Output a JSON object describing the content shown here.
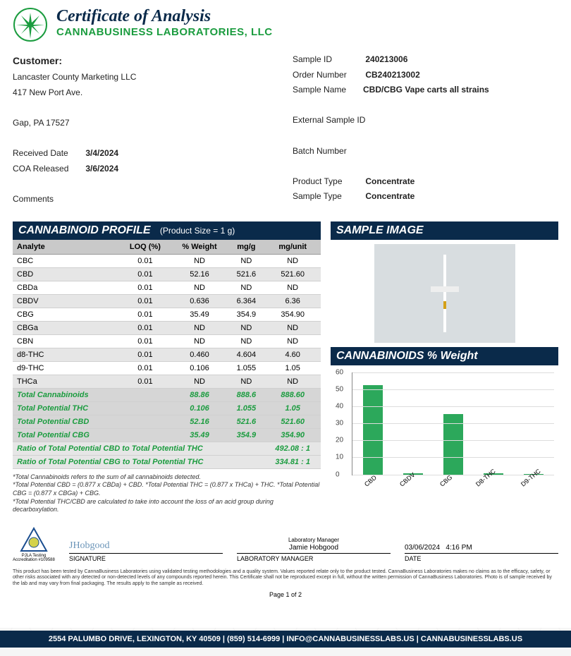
{
  "header": {
    "title": "Certificate of Analysis",
    "lab": "CANNABUSINESS LABORATORIES, LLC"
  },
  "customer": {
    "label": "Customer:",
    "name": "Lancaster County Marketing LLC",
    "addr1": "417 New Port Ave.",
    "addr2": "Gap, PA  17527",
    "received_label": "Received Date",
    "received": "3/4/2024",
    "released_label": "COA Released",
    "released": "3/6/2024",
    "comments_label": "Comments"
  },
  "sample": {
    "id_label": "Sample ID",
    "id": "240213006",
    "order_label": "Order Number",
    "order": "CB240213002",
    "name_label": "Sample Name",
    "name": "CBD/CBG Vape carts  all strains",
    "ext_label": "External Sample ID",
    "ext": "",
    "batch_label": "Batch Number",
    "batch": "",
    "ptype_label": "Product Type",
    "ptype": "Concentrate",
    "stype_label": "Sample Type",
    "stype": "Concentrate"
  },
  "profile": {
    "title": "CANNABINOID PROFILE",
    "subtitle": "(Product Size = 1 g)",
    "headers": [
      "Analyte",
      "LOQ (%)",
      "% Weight",
      "mg/g",
      "mg/unit"
    ],
    "rows": [
      [
        "CBC",
        "0.01",
        "ND",
        "ND",
        "ND"
      ],
      [
        "CBD",
        "0.01",
        "52.16",
        "521.6",
        "521.60"
      ],
      [
        "CBDa",
        "0.01",
        "ND",
        "ND",
        "ND"
      ],
      [
        "CBDV",
        "0.01",
        "0.636",
        "6.364",
        "6.36"
      ],
      [
        "CBG",
        "0.01",
        "35.49",
        "354.9",
        "354.90"
      ],
      [
        "CBGa",
        "0.01",
        "ND",
        "ND",
        "ND"
      ],
      [
        "CBN",
        "0.01",
        "ND",
        "ND",
        "ND"
      ],
      [
        "d8-THC",
        "0.01",
        "0.460",
        "4.604",
        "4.60"
      ],
      [
        "d9-THC",
        "0.01",
        "0.106",
        "1.055",
        "1.05"
      ],
      [
        "THCa",
        "0.01",
        "ND",
        "ND",
        "ND"
      ]
    ],
    "totals": [
      [
        "Total Cannabinoids",
        "",
        "88.86",
        "888.6",
        "888.60"
      ],
      [
        "Total Potential THC",
        "",
        "0.106",
        "1.055",
        "1.05"
      ],
      [
        "Total Potential CBD",
        "",
        "52.16",
        "521.6",
        "521.60"
      ],
      [
        "Total Potential CBG",
        "",
        "35.49",
        "354.9",
        "354.90"
      ]
    ],
    "ratios": [
      [
        "Ratio of Total Potential CBD to Total Potential THC",
        "492.08  : 1"
      ],
      [
        "Ratio of Total Potential CBG to Total Potential THC",
        "334.81  : 1"
      ]
    ],
    "footnotes": "*Total Cannabinoids refers to the sum of all cannabinoids detected.\n*Total Potential CBD = (0.877 x CBDa) + CBD.  *Total Potential THC = (0.877 x THCa) + THC.  *Total Potential CBG = (0.877 x CBGa) + CBG.\n*Total Potential THC/CBD are calculated to take into account the loss of an acid group during decarboxylation."
  },
  "sample_image_title": "SAMPLE IMAGE",
  "chart": {
    "title": "CANNABINOIDS % Weight",
    "type": "bar",
    "categories": [
      "CBD",
      "CBDV",
      "CBG",
      "D8-THC",
      "D9-THC"
    ],
    "values": [
      52.16,
      0.636,
      35.49,
      0.46,
      0.106
    ],
    "ylim": [
      0,
      60
    ],
    "ytick_step": 10,
    "bar_color": "#2ca85b",
    "grid_color": "#dddddd",
    "axis_color": "#888888",
    "background_color": "#ffffff",
    "label_fontsize": 9
  },
  "signature": {
    "accred": "PJLA Testing Accreditation #109588",
    "script": "JHobgood",
    "name": "Jamie Hobgood",
    "sig_label": "SIGNATURE",
    "mgr_label": "LABORATORY MANAGER",
    "role": "Laboratory Manager",
    "date": "03/06/2024",
    "time": "4:16 PM",
    "date_label": "DATE"
  },
  "disclaimer": "This product has been tested by CannaBusiness Laboratories using validated testing methodologies and a quality system. Values reported relate only to the product tested.  CannaBusiness Laboratories makes no claims as to the efficacy, safety, or other risks associated with any detected or non-detected levels of any compounds reported herein. This Certificate shall not be reproduced except in full, without the written permission of CannaBusiness Laboratories.  Photo is of sample received by the lab and may vary from final packaging. The results apply to the sample as received.",
  "pagenum": "Page 1  of  2",
  "footer": "2554 PALUMBO DRIVE, LEXINGTON, KY 40509   |   (859) 514-6999   |   INFO@CANNABUSINESSLABS.US   |   CANNABUSINESSLABS.US"
}
